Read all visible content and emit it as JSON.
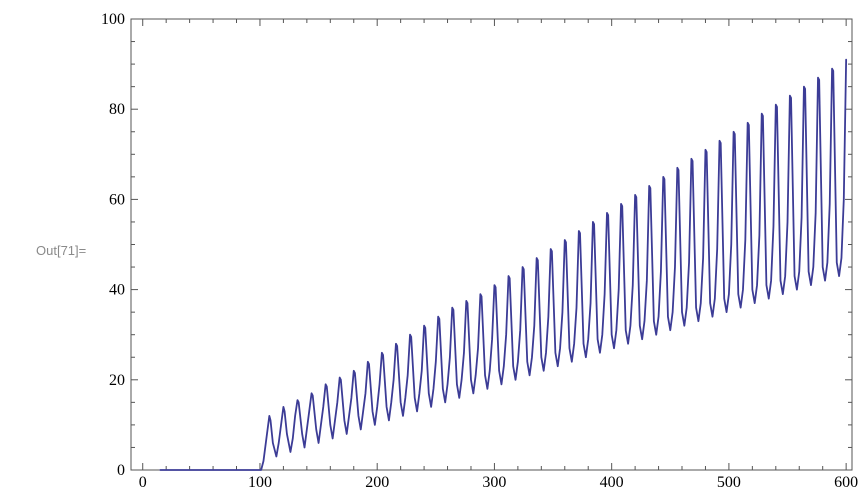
{
  "cell_label": "Out[71]=",
  "chart_data": {
    "type": "line",
    "title": "",
    "xlabel": "",
    "ylabel": "",
    "xlim": [
      -10,
      605
    ],
    "ylim": [
      0,
      100
    ],
    "x_ticks": [
      0,
      100,
      200,
      300,
      400,
      500,
      600
    ],
    "y_ticks": [
      0,
      20,
      40,
      60,
      80,
      100
    ],
    "grid": false,
    "frame": true,
    "line_color": "#3c3c96",
    "series": [
      {
        "x": [
          15,
          101,
          103,
          106,
          108,
          109,
          111,
          112,
          114,
          116,
          118,
          120,
          121,
          123,
          126,
          128,
          130,
          132,
          133,
          136,
          138,
          140,
          142,
          144,
          145,
          148,
          150,
          152,
          154,
          156,
          157,
          160,
          162,
          164,
          166,
          168,
          169,
          172,
          174,
          176,
          178,
          180,
          181,
          184,
          186,
          188,
          190,
          192,
          193,
          196,
          198,
          200,
          202,
          204,
          205,
          208,
          210,
          212,
          214,
          216,
          217,
          220,
          222,
          224,
          226,
          228,
          229,
          232,
          234,
          236,
          238,
          240,
          241,
          244,
          246,
          248,
          250,
          252,
          253,
          256,
          258,
          260,
          262,
          264,
          265,
          268,
          270,
          272,
          274,
          276,
          277,
          280,
          282,
          284,
          286,
          288,
          289,
          292,
          294,
          296,
          298,
          300,
          301,
          304,
          306,
          308,
          310,
          312,
          313,
          316,
          318,
          320,
          322,
          324,
          325,
          328,
          330,
          332,
          334,
          336,
          337,
          340,
          342,
          344,
          346,
          348,
          349,
          352,
          354,
          356,
          358,
          360,
          361,
          364,
          366,
          368,
          370,
          372,
          373,
          376,
          378,
          380,
          382,
          384,
          385,
          388,
          390,
          392,
          394,
          396,
          397,
          400,
          402,
          404,
          406,
          408,
          409,
          412,
          414,
          416,
          418,
          420,
          421,
          424,
          426,
          428,
          430,
          432,
          433,
          436,
          438,
          440,
          442,
          444,
          445,
          448,
          450,
          452,
          454,
          456,
          457,
          460,
          462,
          464,
          466,
          468,
          469,
          472,
          474,
          476,
          478,
          480,
          481,
          484,
          486,
          488,
          490,
          492,
          493,
          496,
          498,
          500,
          502,
          504,
          505,
          508,
          510,
          512,
          514,
          516,
          517,
          520,
          522,
          524,
          526,
          528,
          529,
          532,
          534,
          536,
          538,
          540,
          541,
          544,
          546,
          548,
          550,
          552,
          553,
          556,
          558,
          560,
          562,
          564,
          565,
          568,
          570,
          572,
          574,
          576,
          577,
          580,
          582,
          584,
          586,
          588,
          589,
          592,
          594,
          596,
          598,
          600
        ],
        "y": [
          0,
          0,
          2,
          8,
          12,
          11,
          6,
          5,
          3,
          6,
          10,
          14,
          13,
          8,
          4,
          7,
          12,
          15.5,
          15,
          8,
          5,
          9,
          13,
          17,
          16.5,
          9,
          6,
          10,
          14,
          19,
          18.5,
          10,
          7,
          11,
          15,
          20.5,
          20,
          11,
          8,
          12,
          16,
          22,
          21.5,
          12,
          9,
          13,
          17,
          24,
          23.5,
          13,
          10,
          14,
          19,
          26,
          25.5,
          14,
          11,
          15,
          20,
          28,
          27.5,
          15,
          12,
          16,
          21,
          30,
          29.5,
          16,
          13,
          17,
          22,
          32,
          31.5,
          17,
          14,
          18,
          24,
          34,
          33.5,
          18,
          15,
          19,
          25,
          36,
          35.5,
          19,
          16,
          20,
          26,
          37.5,
          37,
          20,
          17,
          21,
          27,
          39,
          38.5,
          21,
          18,
          22,
          29,
          41,
          40.5,
          22,
          19,
          23,
          30,
          43,
          42.5,
          23,
          20,
          24,
          31,
          45,
          44.5,
          24,
          21,
          25,
          32,
          47,
          46.5,
          25,
          22,
          26,
          34,
          49,
          48.5,
          26,
          23,
          27,
          35,
          51,
          50.5,
          27,
          24,
          28,
          36,
          53,
          52.5,
          28,
          25,
          29,
          37,
          55,
          54.5,
          29,
          26,
          30,
          39,
          57,
          56.5,
          30,
          27,
          31,
          40,
          59,
          58.5,
          31,
          28,
          32,
          41,
          61,
          60.5,
          32,
          29,
          33,
          42,
          63,
          62.5,
          33,
          30,
          34,
          44,
          65,
          64.5,
          34,
          31,
          35,
          45,
          67,
          66.5,
          35,
          32,
          36,
          46,
          69,
          68.5,
          36,
          33,
          37,
          47,
          71,
          70.5,
          37,
          34,
          38,
          49,
          73,
          72.5,
          38,
          35,
          39,
          50,
          75,
          74.5,
          39,
          36,
          40,
          51,
          77,
          76.5,
          40,
          37,
          41,
          52,
          79,
          78.5,
          41,
          38,
          42,
          54,
          81,
          80.5,
          42,
          39,
          43,
          55,
          83,
          82.5,
          43,
          40,
          44,
          56,
          85,
          84.5,
          44,
          41,
          45,
          57,
          87,
          86.5,
          45,
          42,
          46,
          59,
          89,
          88.5,
          46,
          43,
          47,
          60,
          91
        ]
      }
    ]
  }
}
